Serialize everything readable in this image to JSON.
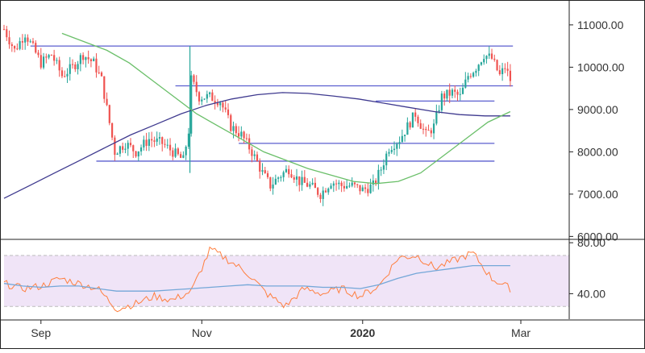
{
  "chart_data": {
    "type": "candlestick",
    "title": "",
    "colors": {
      "up": "#26a69a",
      "down": "#ef5350",
      "sma_long": "#3f3a8f",
      "sma_short": "#6abf69",
      "hline": "#5b5fcf",
      "rsi": "#ff7f3f",
      "rsi_ma": "#74a7d8",
      "rsi_band": "#f0e4f7"
    },
    "x_axis": {
      "ticks": [
        "Sep",
        "Nov",
        "2020",
        "Mar"
      ],
      "bold_ticks": [
        "2020"
      ]
    },
    "price_panel": {
      "y_ticks": [
        "11000.00",
        "10000.00",
        "9000.00",
        "8000.00",
        "7000.00",
        "6000.00"
      ],
      "ylim": [
        5950,
        11550
      ],
      "horizontal_levels": [
        {
          "value": 10500,
          "from": "Aug 28",
          "to": "Feb 27"
        },
        {
          "value": 9560,
          "from": "Oct 22",
          "to": "Feb 27"
        },
        {
          "value": 9200,
          "from": "Jan 06",
          "to": "Feb 20"
        },
        {
          "value": 8200,
          "from": "Nov 15",
          "to": "Feb 20"
        },
        {
          "value": 7780,
          "from": "Sep 22",
          "to": "Feb 20"
        }
      ],
      "candles_desc": "Daily BTC/USD style candles Aug 2019 - Feb 2020",
      "sma_short": [
        10800,
        10600,
        10400,
        10100,
        9700,
        9300,
        8900,
        8600,
        8300,
        8000,
        7800,
        7600,
        7450,
        7300,
        7250,
        7300,
        7500,
        7900,
        8300,
        8700,
        8950
      ],
      "sma_long": [
        6900,
        7200,
        7500,
        7800,
        8100,
        8400,
        8650,
        8900,
        9100,
        9250,
        9350,
        9400,
        9380,
        9320,
        9250,
        9150,
        9050,
        8950,
        8880,
        8850,
        8850
      ]
    },
    "rsi_panel": {
      "y_ticks": [
        "80.00",
        "40.00"
      ],
      "ylim": [
        20,
        82
      ],
      "band": [
        30,
        70
      ],
      "rsi": [
        48,
        44,
        46,
        52,
        48,
        44,
        28,
        32,
        38,
        35,
        42,
        75,
        66,
        56,
        40,
        30,
        44,
        40,
        44,
        38,
        46,
        68,
        70,
        60,
        66,
        72,
        52,
        44
      ],
      "rsi_ma": [
        48,
        46,
        45,
        46,
        46,
        44,
        42,
        42,
        42,
        43,
        44,
        45,
        46,
        47,
        46,
        46,
        46,
        45,
        45,
        44,
        47,
        52,
        56,
        58,
        60,
        62,
        62,
        62
      ]
    }
  }
}
